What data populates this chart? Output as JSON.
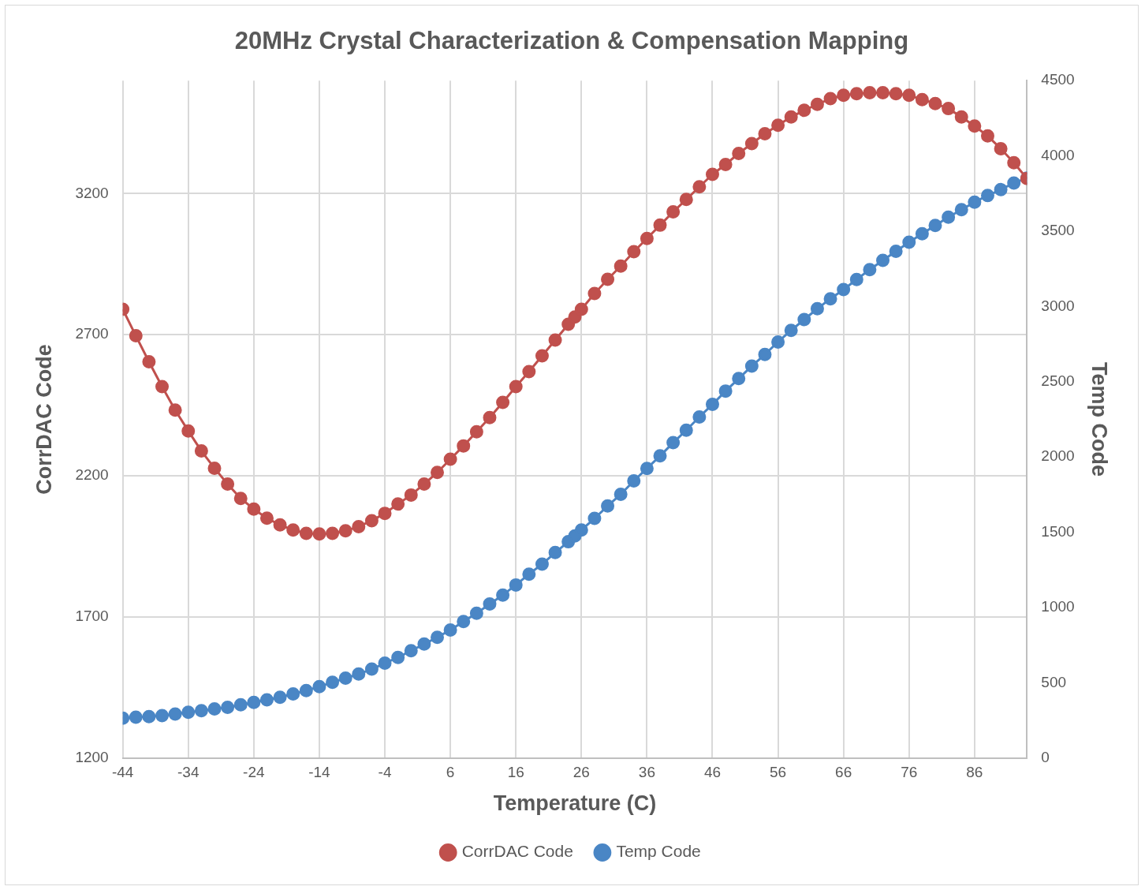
{
  "chart_data": {
    "type": "line",
    "title": "20MHz Crystal Characterization & Compensation Mapping",
    "xlabel": "Temperature (C)",
    "ylabel": "CorrDAC Code",
    "y2label": "Temp Code",
    "x": [
      -44,
      -42,
      -40,
      -38,
      -36,
      -34,
      -32,
      -30,
      -28,
      -26,
      -24,
      -22,
      -20,
      -18,
      -16,
      -14,
      -12,
      -10,
      -8,
      -6,
      -4,
      -2,
      0,
      2,
      4,
      6,
      8,
      10,
      12,
      14,
      16,
      18,
      20,
      22,
      24,
      25,
      26,
      28,
      30,
      32,
      34,
      36,
      38,
      40,
      42,
      44,
      46,
      48,
      50,
      52,
      54,
      56,
      58,
      60,
      62,
      64,
      66,
      68,
      70,
      72,
      74,
      76,
      78,
      80,
      82,
      84,
      86,
      88,
      90,
      92,
      94
    ],
    "series": [
      {
        "name": "CorrDAC Code",
        "color": "#c0504d",
        "values": [
          2790,
          2696,
          2604,
          2516,
          2433,
          2359,
          2288,
          2227,
          2171,
          2120,
          2082,
          2050,
          2026,
          2008,
          1996,
          1994,
          1996,
          2005,
          2020,
          2041,
          2067,
          2100,
          2132,
          2171,
          2212,
          2259,
          2306,
          2356,
          2406,
          2460,
          2516,
          2569,
          2625,
          2681,
          2737,
          2763,
          2790,
          2846,
          2896,
          2943,
          2994,
          3041,
          3088,
          3135,
          3179,
          3224,
          3268,
          3303,
          3342,
          3377,
          3412,
          3442,
          3471,
          3495,
          3516,
          3536,
          3548,
          3554,
          3557,
          3557,
          3554,
          3548,
          3533,
          3519,
          3501,
          3471,
          3439,
          3404,
          3359,
          3309,
          3253
        ]
      },
      {
        "name": "Temp Code",
        "color": "#4a86c5",
        "axis": "y2",
        "values": [
          265,
          271,
          276,
          282,
          293,
          304,
          315,
          326,
          337,
          354,
          370,
          387,
          404,
          426,
          448,
          475,
          503,
          531,
          558,
          591,
          630,
          669,
          713,
          757,
          802,
          851,
          907,
          962,
          1023,
          1083,
          1150,
          1222,
          1288,
          1365,
          1437,
          1476,
          1515,
          1592,
          1675,
          1752,
          1841,
          1924,
          2007,
          2095,
          2178,
          2266,
          2349,
          2438,
          2521,
          2604,
          2681,
          2764,
          2841,
          2913,
          2985,
          3051,
          3112,
          3179,
          3245,
          3306,
          3366,
          3427,
          3483,
          3538,
          3593,
          3643,
          3693,
          3737,
          3776,
          3820,
          3853
        ]
      }
    ],
    "xlim": [
      -44,
      94
    ],
    "xticks": [
      -44,
      -34,
      -24,
      -14,
      -4,
      6,
      16,
      26,
      36,
      46,
      56,
      66,
      76,
      86
    ],
    "ylim": [
      1200,
      3600
    ],
    "yticks": [
      1200,
      1700,
      2200,
      2700,
      3200
    ],
    "y2lim": [
      0,
      4500
    ],
    "y2ticks": [
      0,
      500,
      1000,
      1500,
      2000,
      2500,
      3000,
      3500,
      4000,
      4500
    ],
    "grid": true,
    "legend": "bottom",
    "marker": "circle",
    "line_style": "solid"
  }
}
